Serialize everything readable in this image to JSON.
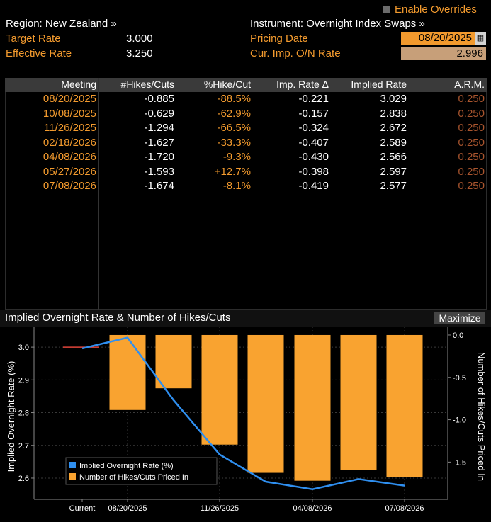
{
  "header": {
    "region_label": "Region: New Zealand »",
    "instrument_label": "Instrument: Overnight Index Swaps »",
    "enable_overrides": "Enable Overrides",
    "target_rate_label": "Target Rate",
    "target_rate_value": "3.000",
    "effective_rate_label": "Effective Rate",
    "effective_rate_value": "3.250",
    "pricing_date_label": "Pricing Date",
    "pricing_date_value": "08/20/2025",
    "onrate_label": "Cur. Imp. O/N Rate",
    "onrate_value": "2.996"
  },
  "table": {
    "columns": [
      "Meeting",
      "#Hikes/Cuts",
      "%Hike/Cut",
      "Imp. Rate Δ",
      "Implied Rate",
      "A.R.M."
    ],
    "rows": [
      [
        "08/20/2025",
        "-0.885",
        "-88.5%",
        "-0.221",
        "3.029",
        "0.250"
      ],
      [
        "10/08/2025",
        "-0.629",
        "-62.9%",
        "-0.157",
        "2.838",
        "0.250"
      ],
      [
        "11/26/2025",
        "-1.294",
        "-66.5%",
        "-0.324",
        "2.672",
        "0.250"
      ],
      [
        "02/18/2026",
        "-1.627",
        "-33.3%",
        "-0.407",
        "2.589",
        "0.250"
      ],
      [
        "04/08/2026",
        "-1.720",
        "-9.3%",
        "-0.430",
        "2.566",
        "0.250"
      ],
      [
        "05/27/2026",
        "-1.593",
        "+12.7%",
        "-0.398",
        "2.597",
        "0.250"
      ],
      [
        "07/08/2026",
        "-1.674",
        "-8.1%",
        "-0.419",
        "2.577",
        "0.250"
      ]
    ]
  },
  "chart_header": {
    "title": "Implied Overnight Rate & Number of Hikes/Cuts",
    "maximize": "Maximize"
  },
  "colors": {
    "accent": "#f29a2e",
    "line": "#2f8ff0",
    "bar": "#f9a330"
  },
  "chart_data": {
    "type": "bar",
    "x_categories": [
      "Current",
      "08/20/2025",
      "10/08/2025",
      "11/26/2025",
      "02/18/2026",
      "04/08/2026",
      "05/27/2026",
      "07/08/2026"
    ],
    "x_tick_labels": [
      "Current",
      "08/20/2025",
      "11/26/2025",
      "04/08/2026",
      "07/08/2026"
    ],
    "series": [
      {
        "name": "Implied Overnight Rate (%)",
        "type": "line",
        "axis": "left",
        "values": [
          2.996,
          3.029,
          2.838,
          2.672,
          2.589,
          2.566,
          2.597,
          2.577
        ]
      },
      {
        "name": "Number of Hikes/Cuts Priced In",
        "type": "bar",
        "axis": "right",
        "values": [
          null,
          -0.885,
          -0.629,
          -1.294,
          -1.627,
          -1.72,
          -1.593,
          -1.674
        ]
      }
    ],
    "target_rate": 3.0,
    "ylabel_left": "Implied Overnight Rate (%)",
    "ylabel_right": "Number of Hikes/Cuts Priced In",
    "yticks_left": [
      "2.6",
      "2.7",
      "2.8",
      "2.9",
      "3.0"
    ],
    "yticks_right": [
      "-1.5",
      "-1.0",
      "-0.5",
      "0.0"
    ],
    "ylim_left": [
      2.535,
      3.063
    ],
    "ylim_right": [
      -1.94,
      0.1
    ],
    "legend": "bottom-left"
  }
}
